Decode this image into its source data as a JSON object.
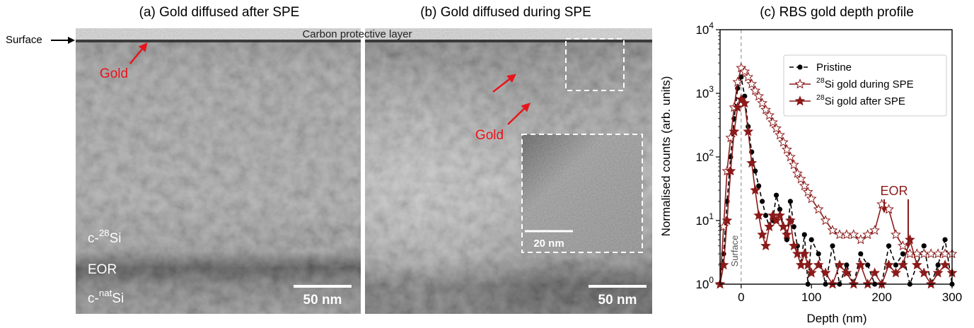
{
  "figure": {
    "surface_label": "Surface",
    "carbon_label": "Carbon protective layer",
    "panel_a": {
      "title": "(a) Gold diffused after SPE",
      "gold_label": "Gold",
      "layer_labels": [
        "c-^28^Si",
        "EOR",
        "c-^nat^Si"
      ],
      "scale_bar": "50 nm"
    },
    "panel_b": {
      "title": "(b) Gold diffused during SPE",
      "gold_label": "Gold",
      "scale_bar": "50 nm",
      "inset_scale_bar": "20 nm"
    }
  },
  "chart_data": {
    "type": "line",
    "title": "(c) RBS gold depth profile",
    "x_label": "Depth (nm)",
    "y_label": "Normalised counts (arb. units)",
    "log_y": true,
    "xlim": [
      -30,
      300
    ],
    "xticks": [
      0,
      100,
      200,
      300
    ],
    "ylim": [
      1,
      10000
    ],
    "yticks": [
      {
        "value": 1,
        "label": "10^0"
      },
      {
        "value": 10,
        "label": "10^1"
      },
      {
        "value": 100,
        "label": "10^2"
      },
      {
        "value": 1000,
        "label": "10^3"
      },
      {
        "value": 10000,
        "label": "10^4"
      }
    ],
    "legend": "upper right",
    "annotations": [
      "EOR",
      "Surface"
    ],
    "x": [
      -30,
      -25,
      -20,
      -15,
      -10,
      -5,
      0,
      5,
      10,
      15,
      20,
      25,
      30,
      35,
      40,
      45,
      50,
      55,
      60,
      65,
      70,
      75,
      80,
      85,
      90,
      95,
      100,
      110,
      120,
      130,
      140,
      150,
      160,
      170,
      180,
      190,
      200,
      210,
      220,
      230,
      240,
      250,
      260,
      270,
      280,
      290,
      300
    ],
    "series": [
      {
        "name": "Pristine",
        "color": "#000000",
        "marker": "circle",
        "dashed": true,
        "values": [
          1,
          3,
          20,
          100,
          400,
          1200,
          1800,
          900,
          300,
          120,
          60,
          35,
          20,
          12,
          8,
          10,
          25,
          15,
          8,
          5,
          20,
          8,
          4,
          2,
          6,
          1,
          5,
          3,
          1,
          4,
          1,
          2,
          1,
          3,
          2,
          1,
          1,
          4,
          2,
          3,
          1,
          2,
          4,
          1,
          2,
          5,
          1
        ]
      },
      {
        "name": "^28^Si gold during SPE",
        "color": "#8b1a1a",
        "marker": "open-star",
        "dashed": false,
        "values": [
          1,
          8,
          60,
          200,
          600,
          1500,
          2500,
          2200,
          1800,
          1400,
          1100,
          900,
          700,
          550,
          450,
          350,
          280,
          220,
          170,
          130,
          100,
          75,
          55,
          45,
          35,
          28,
          22,
          15,
          10,
          7,
          6,
          6,
          6,
          5,
          6,
          7,
          18,
          15,
          6,
          4,
          3,
          3,
          3,
          3,
          3,
          3,
          3
        ]
      },
      {
        "name": "^28^Si gold after SPE",
        "color": "#8b1a1a",
        "marker": "star",
        "dashed": false,
        "values": [
          1,
          2,
          10,
          60,
          250,
          600,
          800,
          700,
          250,
          80,
          30,
          12,
          6,
          4,
          8,
          12,
          10,
          12,
          8,
          6,
          10,
          4,
          3,
          2,
          3,
          2,
          1.5,
          2,
          1.5,
          1,
          2,
          1.5,
          1,
          2,
          1,
          1.5,
          1,
          2,
          1.5,
          2,
          5,
          2,
          1.5,
          1,
          1.5,
          2,
          1.5
        ]
      }
    ]
  }
}
